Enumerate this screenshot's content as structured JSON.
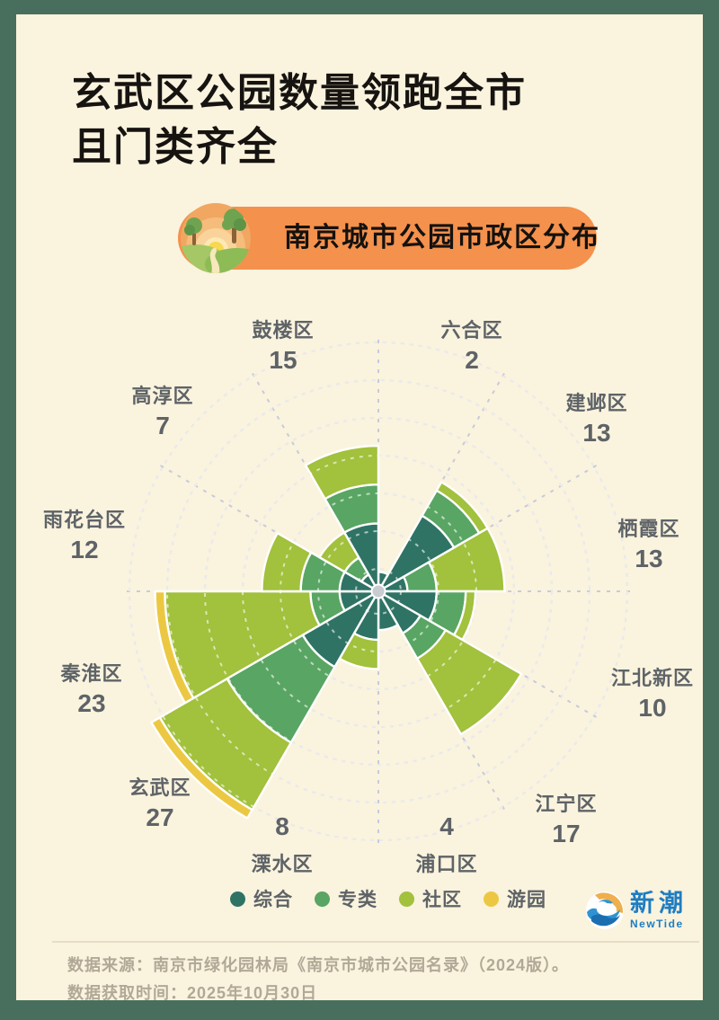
{
  "colors": {
    "background": "#FAF3DE",
    "frame": "#486F5E",
    "badge_orange": "#F4914D",
    "grid_gray": "#C7CBD8",
    "label_gray": "#5E6367",
    "footer_gray": "#B1A897",
    "logo_blue": "#1E7DC2",
    "title_black": "#161310"
  },
  "title": {
    "line1": "玄武区公园数量领跑全市",
    "line2": "且门类齐全"
  },
  "badge": {
    "label": "南京城市公园市政区分布",
    "icon": "park-scene-icon"
  },
  "chart_data": {
    "type": "rose-polar-stacked-bar",
    "title": "南京城市公园市政区分布",
    "categories": [
      "综合",
      "专类",
      "社区",
      "游园"
    ],
    "category_colors": [
      "#2F7365",
      "#59A563",
      "#A2C13C",
      "#ECC842"
    ],
    "sector_deg": 30,
    "start_angle_deg": 0,
    "clockwise": true,
    "grid": {
      "rings": 7,
      "style": "dashed",
      "radial_lines": 12
    },
    "districts": [
      {
        "name": "六合区",
        "total": 2,
        "values": [
          2,
          0,
          0,
          0
        ]
      },
      {
        "name": "建邺区",
        "total": 13,
        "values": [
          9,
          3,
          1,
          0
        ]
      },
      {
        "name": "栖霞区",
        "total": 13,
        "values": [
          3,
          3,
          7,
          0
        ]
      },
      {
        "name": "江北新区",
        "total": 10,
        "values": [
          6,
          3,
          1,
          0
        ]
      },
      {
        "name": "江宁区",
        "total": 17,
        "values": [
          5,
          3,
          9,
          0
        ]
      },
      {
        "name": "浦口区",
        "total": 4,
        "values": [
          4,
          0,
          0,
          0
        ]
      },
      {
        "name": "溧水区",
        "total": 8,
        "values": [
          5,
          0,
          3,
          0
        ]
      },
      {
        "name": "玄武区",
        "total": 27,
        "values": [
          9,
          9,
          8,
          1
        ]
      },
      {
        "name": "秦淮区",
        "total": 23,
        "values": [
          4,
          3,
          15,
          1
        ]
      },
      {
        "name": "雨花台区",
        "total": 12,
        "values": [
          4,
          4,
          4,
          0
        ]
      },
      {
        "name": "高淳区",
        "total": 7,
        "values": [
          2,
          2,
          3,
          0
        ]
      },
      {
        "name": "鼓楼区",
        "total": 15,
        "values": [
          7,
          4,
          4,
          0
        ]
      }
    ]
  },
  "legend": {
    "items": [
      {
        "label": "综合",
        "color": "#2F7365"
      },
      {
        "label": "专类",
        "color": "#59A563"
      },
      {
        "label": "社区",
        "color": "#A2C13C"
      },
      {
        "label": "游园",
        "color": "#ECC842"
      }
    ]
  },
  "logo": {
    "cn": "新潮",
    "en": "NewTide"
  },
  "footer": {
    "line1": "数据来源：南京市绿化园林局《南京市城市公园名录》（2024版）。",
    "line2": "数据获取时间：2025年10月30日"
  }
}
